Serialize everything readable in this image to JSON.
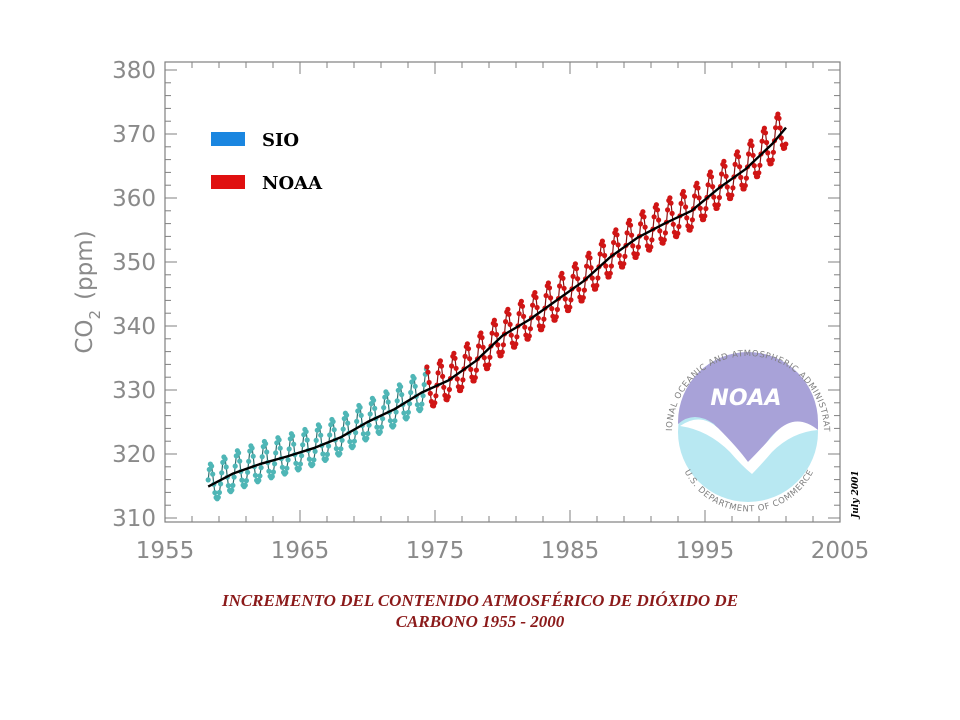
{
  "chart_data": {
    "type": "line",
    "ylabel_main": "CO",
    "ylabel_sub": "2",
    "ylabel_unit": "(ppm)",
    "xlim": [
      1955,
      2005
    ],
    "ylim": [
      310,
      380
    ],
    "x_ticks": [
      "1955",
      "1965",
      "1975",
      "1985",
      "1995",
      "2005"
    ],
    "y_ticks": [
      "310",
      "320",
      "330",
      "340",
      "350",
      "360",
      "370",
      "380"
    ],
    "legend": {
      "position": "top-left",
      "items": [
        {
          "name": "SIO",
          "color": "#1a86e0"
        },
        {
          "name": "NOAA",
          "color": "#e01010"
        }
      ]
    },
    "series": [
      {
        "name": "SIO",
        "kind": "monthly-points",
        "marker_color": "#4fb6b6",
        "line_color": "#2f6f6f",
        "x_range": [
          1958.2,
          1974.4
        ],
        "seasonal_amplitude_ppm": 3
      },
      {
        "name": "NOAA",
        "kind": "monthly-points",
        "marker_color": "#d01515",
        "line_color": "#8a1010",
        "x_range": [
          1974.4,
          2001.0
        ],
        "seasonal_amplitude_ppm": 3.3
      },
      {
        "name": "trend",
        "kind": "smoothed",
        "line_color": "#000000",
        "x": [
          1958.2,
          1960,
          1962,
          1964,
          1966,
          1968,
          1970,
          1972,
          1974,
          1976,
          1978,
          1980,
          1982,
          1984,
          1986,
          1988,
          1990,
          1992,
          1994,
          1996,
          1998,
          2000,
          2001
        ],
        "y": [
          314.9,
          316.9,
          318.4,
          319.6,
          320.9,
          322.6,
          325.0,
          327.0,
          329.6,
          331.5,
          334.5,
          338.5,
          341.0,
          344.0,
          347.0,
          350.8,
          353.8,
          356.0,
          358.0,
          361.5,
          364.5,
          368.5,
          371.0
        ]
      }
    ]
  },
  "logo": {
    "word": "NOAA",
    "ring_text_top": "NATIONAL OCEANIC AND ATMOSPHERIC ADMINISTRATION",
    "ring_text_bottom": "U.S. DEPARTMENT OF COMMERCE",
    "stamp": "July 2001"
  },
  "caption": {
    "line1": "INCREMENTO DEL CONTENIDO ATMOSFÉRICO DE DIÓXIDO DE",
    "line2": "CARBONO 1955 - 2000"
  }
}
